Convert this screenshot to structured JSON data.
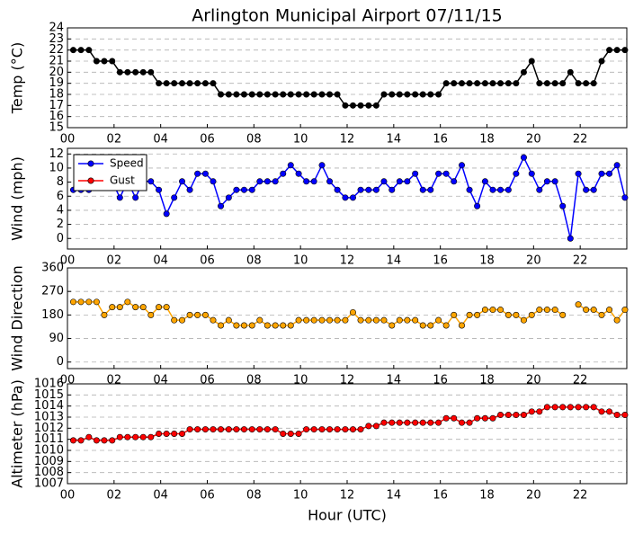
{
  "chart_data": [
    {
      "type": "line",
      "title": "Arlington Municipal Airport 07/11/15",
      "ylabel": "Temp (°C)",
      "color": "#000000",
      "x": [
        0.25,
        0.58,
        0.92,
        1.25,
        1.58,
        1.92,
        2.25,
        2.58,
        2.92,
        3.25,
        3.58,
        3.92,
        4.25,
        4.58,
        4.92,
        5.25,
        5.58,
        5.92,
        6.25,
        6.58,
        6.92,
        7.25,
        7.58,
        7.92,
        8.25,
        8.58,
        8.92,
        9.25,
        9.58,
        9.92,
        10.25,
        10.58,
        10.92,
        11.25,
        11.58,
        11.92,
        12.25,
        12.58,
        12.92,
        13.25,
        13.58,
        13.92,
        14.25,
        14.58,
        14.92,
        15.25,
        15.58,
        15.92,
        16.25,
        16.58,
        16.92,
        17.25,
        17.58,
        17.92,
        18.25,
        18.58,
        18.92,
        19.25,
        19.58,
        19.92,
        20.25,
        20.58,
        20.92,
        21.25,
        21.58,
        21.92,
        22.25,
        22.58,
        22.92,
        23.25,
        23.58,
        23.92
      ],
      "values": [
        22,
        22,
        22,
        21,
        21,
        21,
        20,
        20,
        20,
        20,
        20,
        19,
        19,
        19,
        19,
        19,
        19,
        19,
        19,
        18,
        18,
        18,
        18,
        18,
        18,
        18,
        18,
        18,
        18,
        18,
        18,
        18,
        18,
        18,
        18,
        17,
        17,
        17,
        17,
        17,
        18,
        18,
        18,
        18,
        18,
        18,
        18,
        18,
        19,
        19,
        19,
        19,
        19,
        19,
        19,
        19,
        19,
        19,
        20,
        21,
        19,
        19,
        19,
        19,
        20,
        19,
        19,
        19,
        21,
        22,
        22,
        22
      ],
      "xlim": [
        0,
        24
      ],
      "xticks": [
        {
          "value": 0,
          "label": "00"
        },
        {
          "value": 2,
          "label": "02"
        },
        {
          "value": 4,
          "label": "04"
        },
        {
          "value": 6,
          "label": "06"
        },
        {
          "value": 8,
          "label": "08"
        },
        {
          "value": 10,
          "label": "10"
        },
        {
          "value": 12,
          "label": "12"
        },
        {
          "value": 14,
          "label": "14"
        },
        {
          "value": 16,
          "label": "16"
        },
        {
          "value": 18,
          "label": "18"
        },
        {
          "value": 20,
          "label": "20"
        },
        {
          "value": 22,
          "label": "22"
        }
      ],
      "ylim": [
        15,
        24
      ],
      "yticks": [
        15,
        16,
        17,
        18,
        19,
        20,
        21,
        22,
        23,
        24
      ],
      "grid": true
    },
    {
      "type": "line",
      "ylabel": "Wind (mph)",
      "legend": "upper left",
      "x": [
        0.25,
        0.58,
        0.92,
        1.25,
        1.58,
        1.92,
        2.25,
        2.58,
        2.92,
        3.25,
        3.58,
        3.92,
        4.25,
        4.58,
        4.92,
        5.25,
        5.58,
        5.92,
        6.25,
        6.58,
        6.92,
        7.25,
        7.58,
        7.92,
        8.25,
        8.58,
        8.92,
        9.25,
        9.58,
        9.92,
        10.25,
        10.58,
        10.92,
        11.25,
        11.58,
        11.92,
        12.25,
        12.58,
        12.92,
        13.25,
        13.58,
        13.92,
        14.25,
        14.58,
        14.92,
        15.25,
        15.58,
        15.92,
        16.25,
        16.58,
        16.92,
        17.25,
        17.58,
        17.92,
        18.25,
        18.58,
        18.92,
        19.25,
        19.58,
        19.92,
        20.25,
        20.58,
        20.92,
        21.25,
        21.58,
        21.92,
        22.25,
        22.58,
        22.92,
        23.25,
        23.58,
        23.92
      ],
      "series": [
        {
          "name": "Speed",
          "color": "#0000ff",
          "values": [
            6.9,
            6.9,
            6.9,
            8.1,
            8.1,
            8.1,
            5.8,
            8.1,
            5.8,
            8.1,
            8.1,
            6.9,
            3.5,
            5.8,
            8.1,
            6.9,
            9.2,
            9.2,
            8.1,
            4.6,
            5.8,
            6.9,
            6.9,
            6.9,
            8.1,
            8.1,
            8.1,
            9.2,
            10.4,
            9.2,
            8.1,
            8.1,
            10.4,
            8.1,
            6.9,
            5.8,
            5.8,
            6.9,
            6.9,
            6.9,
            8.1,
            6.9,
            8.1,
            8.1,
            9.2,
            6.9,
            6.9,
            9.2,
            9.2,
            8.1,
            10.4,
            6.9,
            4.6,
            8.1,
            6.9,
            6.9,
            6.9,
            9.2,
            11.5,
            9.2,
            6.9,
            8.1,
            8.1,
            4.6,
            0,
            9.2,
            6.9,
            6.9,
            9.2,
            9.2,
            10.4,
            5.8
          ]
        },
        {
          "name": "Gust",
          "color": "#ff0000",
          "values": [
            null,
            null,
            null,
            null,
            null,
            null,
            null,
            null,
            null,
            null,
            null,
            null,
            null,
            null,
            null,
            null,
            null,
            null,
            null,
            null,
            null,
            null,
            null,
            null,
            null,
            null,
            null,
            null,
            null,
            null,
            null,
            null,
            null,
            null,
            null,
            null,
            null,
            null,
            null,
            null,
            null,
            null,
            null,
            null,
            null,
            null,
            null,
            null,
            null,
            null,
            null,
            null,
            null,
            null,
            null,
            null,
            null,
            null,
            null,
            null,
            null,
            null,
            null,
            null,
            null,
            null,
            null,
            null,
            null,
            null,
            null,
            null
          ]
        }
      ],
      "xlim": [
        0,
        24
      ],
      "xticks": [
        {
          "value": 0,
          "label": "00"
        },
        {
          "value": 2,
          "label": "02"
        },
        {
          "value": 4,
          "label": "04"
        },
        {
          "value": 6,
          "label": "06"
        },
        {
          "value": 8,
          "label": "08"
        },
        {
          "value": 10,
          "label": "10"
        },
        {
          "value": 12,
          "label": "12"
        },
        {
          "value": 14,
          "label": "14"
        },
        {
          "value": 16,
          "label": "16"
        },
        {
          "value": 18,
          "label": "18"
        },
        {
          "value": 20,
          "label": "20"
        },
        {
          "value": 22,
          "label": "22"
        }
      ],
      "ylim": [
        -1.5,
        12.8
      ],
      "yticks": [
        0,
        2,
        4,
        6,
        8,
        10,
        12
      ],
      "grid": true
    },
    {
      "type": "line",
      "ylabel": "Wind Direction",
      "color": "#ffa500",
      "x": [
        0.25,
        0.58,
        0.92,
        1.25,
        1.58,
        1.92,
        2.25,
        2.58,
        2.92,
        3.25,
        3.58,
        3.92,
        4.25,
        4.58,
        4.92,
        5.25,
        5.58,
        5.92,
        6.25,
        6.58,
        6.92,
        7.25,
        7.58,
        7.92,
        8.25,
        8.58,
        8.92,
        9.25,
        9.58,
        9.92,
        10.25,
        10.58,
        10.92,
        11.25,
        11.58,
        11.92,
        12.25,
        12.58,
        12.92,
        13.25,
        13.58,
        13.92,
        14.25,
        14.58,
        14.92,
        15.25,
        15.58,
        15.92,
        16.25,
        16.58,
        16.92,
        17.25,
        17.58,
        17.92,
        18.25,
        18.58,
        18.92,
        19.25,
        19.58,
        19.92,
        20.25,
        20.58,
        20.92,
        21.25,
        21.58,
        21.92,
        22.25,
        22.58,
        22.92,
        23.25,
        23.58,
        23.92
      ],
      "values": [
        230,
        230,
        230,
        230,
        180,
        210,
        210,
        230,
        210,
        210,
        180,
        210,
        210,
        160,
        160,
        180,
        180,
        180,
        160,
        140,
        160,
        140,
        140,
        140,
        160,
        140,
        140,
        140,
        140,
        160,
        160,
        160,
        160,
        160,
        160,
        160,
        190,
        160,
        160,
        160,
        160,
        140,
        160,
        160,
        160,
        140,
        140,
        160,
        140,
        180,
        140,
        180,
        180,
        200,
        200,
        200,
        180,
        180,
        160,
        180,
        200,
        200,
        200,
        180,
        null,
        220,
        200,
        200,
        180,
        200,
        160,
        200
      ],
      "xlim": [
        0,
        24
      ],
      "xticks": [
        {
          "value": 0,
          "label": "00"
        },
        {
          "value": 2,
          "label": "02"
        },
        {
          "value": 4,
          "label": "04"
        },
        {
          "value": 6,
          "label": "06"
        },
        {
          "value": 8,
          "label": "08"
        },
        {
          "value": 10,
          "label": "10"
        },
        {
          "value": 12,
          "label": "12"
        },
        {
          "value": 14,
          "label": "14"
        },
        {
          "value": 16,
          "label": "16"
        },
        {
          "value": 18,
          "label": "18"
        },
        {
          "value": 20,
          "label": "20"
        },
        {
          "value": 22,
          "label": "22"
        }
      ],
      "ylim": [
        -25,
        360
      ],
      "yticks": [
        0,
        90,
        180,
        270,
        360
      ],
      "grid": true
    },
    {
      "type": "line",
      "ylabel": "Altimeter (hPa)",
      "xlabel": "Hour (UTC)",
      "color": "#ff0000",
      "x": [
        0.25,
        0.58,
        0.92,
        1.25,
        1.58,
        1.92,
        2.25,
        2.58,
        2.92,
        3.25,
        3.58,
        3.92,
        4.25,
        4.58,
        4.92,
        5.25,
        5.58,
        5.92,
        6.25,
        6.58,
        6.92,
        7.25,
        7.58,
        7.92,
        8.25,
        8.58,
        8.92,
        9.25,
        9.58,
        9.92,
        10.25,
        10.58,
        10.92,
        11.25,
        11.58,
        11.92,
        12.25,
        12.58,
        12.92,
        13.25,
        13.58,
        13.92,
        14.25,
        14.58,
        14.92,
        15.25,
        15.58,
        15.92,
        16.25,
        16.58,
        16.92,
        17.25,
        17.58,
        17.92,
        18.25,
        18.58,
        18.92,
        19.25,
        19.58,
        19.92,
        20.25,
        20.58,
        20.92,
        21.25,
        21.58,
        21.92,
        22.25,
        22.58,
        22.92,
        23.25,
        23.58,
        23.92
      ],
      "values": [
        1010.9,
        1010.9,
        1011.2,
        1010.9,
        1010.9,
        1010.9,
        1011.2,
        1011.2,
        1011.2,
        1011.2,
        1011.2,
        1011.5,
        1011.5,
        1011.5,
        1011.5,
        1011.9,
        1011.9,
        1011.9,
        1011.9,
        1011.9,
        1011.9,
        1011.9,
        1011.9,
        1011.9,
        1011.9,
        1011.9,
        1011.9,
        1011.5,
        1011.5,
        1011.5,
        1011.9,
        1011.9,
        1011.9,
        1011.9,
        1011.9,
        1011.9,
        1011.9,
        1011.9,
        1012.2,
        1012.2,
        1012.5,
        1012.5,
        1012.5,
        1012.5,
        1012.5,
        1012.5,
        1012.5,
        1012.5,
        1012.9,
        1012.9,
        1012.5,
        1012.5,
        1012.9,
        1012.9,
        1012.9,
        1013.2,
        1013.2,
        1013.2,
        1013.2,
        1013.5,
        1013.5,
        1013.9,
        1013.9,
        1013.9,
        1013.9,
        1013.9,
        1013.9,
        1013.9,
        1013.5,
        1013.5,
        1013.2,
        1013.2
      ],
      "xlim": [
        0,
        24
      ],
      "xticks": [
        {
          "value": 0,
          "label": "00"
        },
        {
          "value": 2,
          "label": "02"
        },
        {
          "value": 4,
          "label": "04"
        },
        {
          "value": 6,
          "label": "06"
        },
        {
          "value": 8,
          "label": "08"
        },
        {
          "value": 10,
          "label": "10"
        },
        {
          "value": 12,
          "label": "12"
        },
        {
          "value": 14,
          "label": "14"
        },
        {
          "value": 16,
          "label": "16"
        },
        {
          "value": 18,
          "label": "18"
        },
        {
          "value": 20,
          "label": "20"
        },
        {
          "value": 22,
          "label": "22"
        }
      ],
      "ylim": [
        1007,
        1016
      ],
      "yticks": [
        1007,
        1008,
        1009,
        1010,
        1011,
        1012,
        1013,
        1014,
        1015,
        1016
      ],
      "grid": true
    }
  ]
}
